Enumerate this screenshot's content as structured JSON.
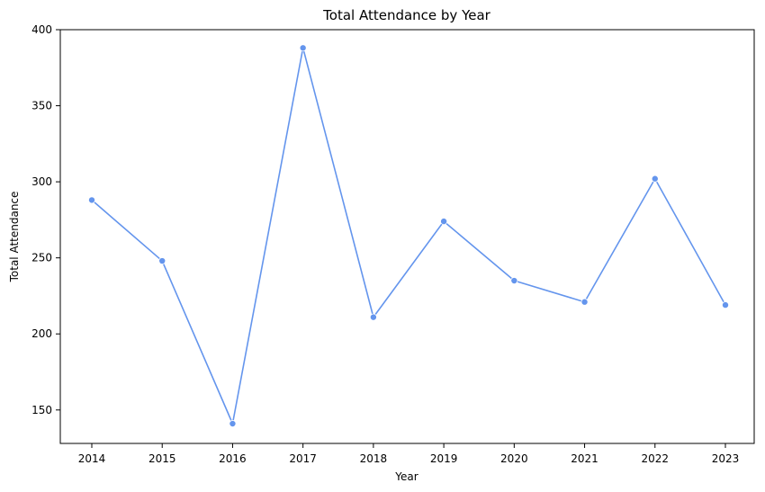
{
  "chart_data": {
    "type": "line",
    "title": "Total Attendance by Year",
    "xlabel": "Year",
    "ylabel": "Total Attendance",
    "x": [
      "2014",
      "2015",
      "2016",
      "2017",
      "2018",
      "2019",
      "2020",
      "2021",
      "2022",
      "2023"
    ],
    "series": [
      {
        "values": [
          288,
          248,
          141,
          388,
          211,
          274,
          235,
          221,
          302,
          219
        ],
        "color": "#6495ED",
        "marker": "circle"
      }
    ],
    "ylim": [
      128,
      400
    ],
    "yticks": [
      150,
      200,
      250,
      300,
      350,
      400
    ],
    "grid": false,
    "legend": "none"
  }
}
